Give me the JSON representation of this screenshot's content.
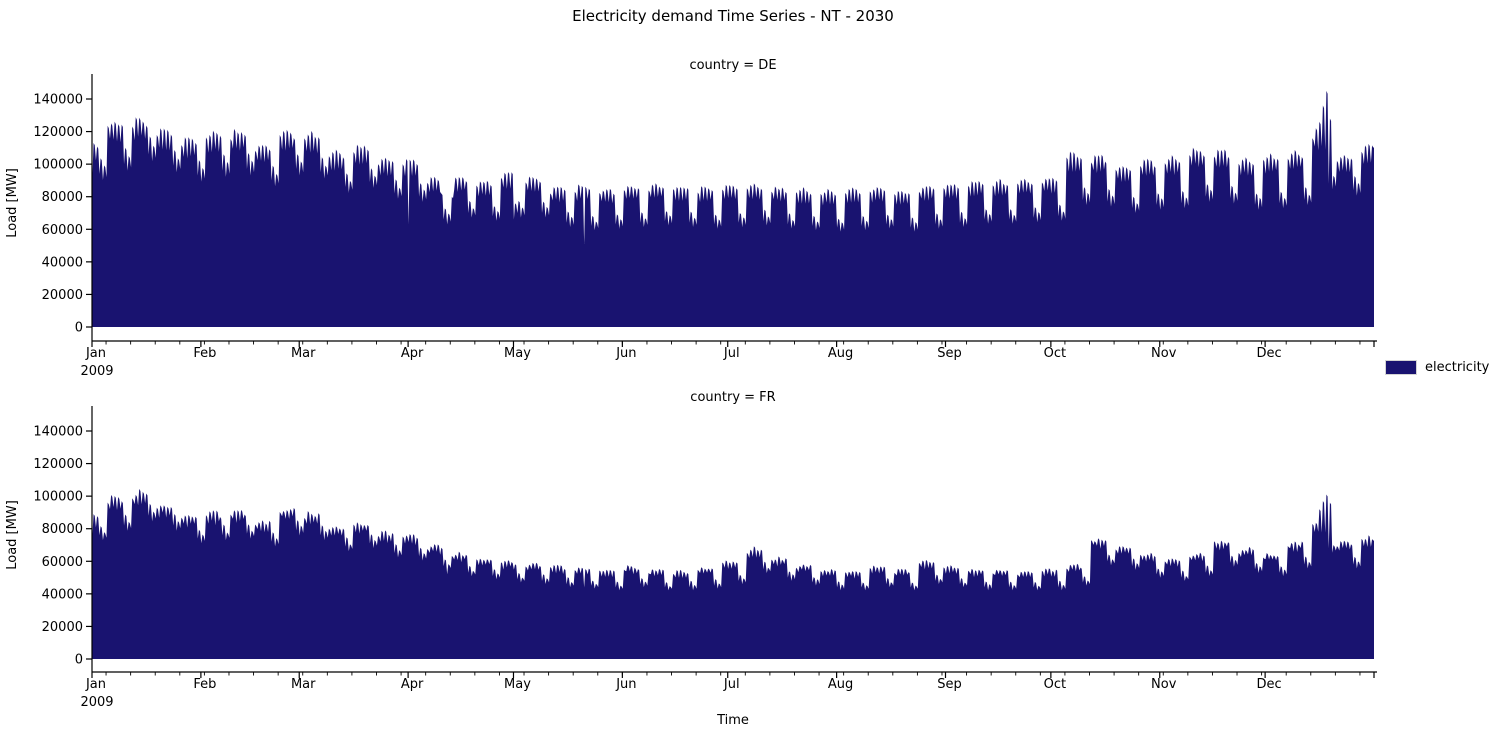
{
  "title": "Electricity demand Time Series - NT - 2030",
  "legend": {
    "label": "electricity",
    "swatch_color": "#191370"
  },
  "axes": {
    "x_label": "Time",
    "y_label": "Load [MW]",
    "year_label": "2009",
    "x_tick_labels": [
      "Jan",
      "Feb",
      "Mar",
      "Apr",
      "May",
      "Jun",
      "Jul",
      "Aug",
      "Sep",
      "Oct",
      "Nov",
      "Dec"
    ],
    "y_ticks": [
      0,
      20000,
      40000,
      60000,
      80000,
      100000,
      120000,
      140000
    ]
  },
  "chart_data": [
    {
      "type": "area",
      "title": "country = DE",
      "series_name": "electricity",
      "color": "#191370",
      "x_unit": "weeks of year 2009 (hourly load, weekday peaks / weekend minima)",
      "y_unit": "MW",
      "ylim": [
        0,
        140000
      ],
      "weekly_peak_MW": [
        113000,
        127000,
        129000,
        122000,
        116000,
        120000,
        121000,
        113000,
        121000,
        119000,
        108000,
        112000,
        104000,
        103000,
        92000,
        93000,
        90000,
        95000,
        93000,
        86000,
        87000,
        85000,
        87000,
        88000,
        87000,
        86000,
        87000,
        88000,
        86000,
        85000,
        84000,
        85000,
        86000,
        84000,
        87000,
        88000,
        90000,
        90000,
        91000,
        92000,
        107000,
        106000,
        100000,
        103000,
        105000,
        110000,
        109000,
        104000,
        106000,
        108000,
        122000,
        106000,
        112000
      ],
      "weekly_weekend_min_MW": [
        94000,
        100000,
        106000,
        99000,
        93000,
        96000,
        97000,
        90000,
        97000,
        95000,
        86000,
        89000,
        82000,
        80000,
        66000,
        70000,
        68000,
        70000,
        70000,
        64000,
        62000,
        63000,
        64000,
        65000,
        64000,
        63000,
        64000,
        65000,
        63000,
        62000,
        61000,
        62000,
        63000,
        61000,
        63000,
        64000,
        66000,
        66000,
        67000,
        68000,
        78000,
        77000,
        73000,
        75000,
        76000,
        80000,
        79000,
        75000,
        76000,
        78000,
        88000,
        84000,
        85000
      ],
      "event_day_max_MW": {
        "99": 82000,
        "102": 80000,
        "120": 76000,
        "347": 116000,
        "349": 126000,
        "350": 136000,
        "351": 145000,
        "352": 128000
      },
      "event_day_min_MW": {
        "0": 93000,
        "90": 63000,
        "100": 66000,
        "101": 63000,
        "120": 66000,
        "140": 51000,
        "151": 62000
      }
    },
    {
      "type": "area",
      "title": "country = FR",
      "series_name": "electricity",
      "color": "#191370",
      "x_unit": "weeks of year 2009 (hourly load, weekday peaks / weekend minima)",
      "y_unit": "MW",
      "ylim": [
        0,
        140000
      ],
      "weekly_peak_MW": [
        88000,
        100000,
        103000,
        95000,
        88000,
        90000,
        91000,
        85000,
        93000,
        90000,
        82000,
        84000,
        78000,
        76000,
        70000,
        65000,
        62000,
        60000,
        59000,
        57000,
        56000,
        55000,
        57000,
        55000,
        54000,
        56000,
        60000,
        68000,
        62000,
        58000,
        55000,
        54000,
        57000,
        55000,
        60000,
        57000,
        55000,
        55000,
        54000,
        55000,
        58000,
        74000,
        70000,
        65000,
        62000,
        65000,
        73000,
        68000,
        65000,
        72000,
        85000,
        72000,
        75000
      ],
      "weekly_weekend_min_MW": [
        76000,
        82000,
        88000,
        82000,
        74000,
        76000,
        77000,
        72000,
        79000,
        76000,
        69000,
        71000,
        65000,
        63000,
        57000,
        53000,
        51000,
        49000,
        48000,
        46000,
        45000,
        44000,
        46000,
        44000,
        44000,
        45000,
        48000,
        55000,
        50000,
        47000,
        44000,
        44000,
        46000,
        44000,
        48000,
        46000,
        44000,
        44000,
        44000,
        44000,
        47000,
        60000,
        57000,
        52000,
        50000,
        53000,
        59000,
        55000,
        53000,
        58000,
        68000,
        58000,
        61000
      ],
      "event_day_max_MW": {
        "349": 92000,
        "350": 97000,
        "351": 101000,
        "352": 96000
      },
      "event_day_min_MW": {
        "0": 76000,
        "101": 52000,
        "140": 44000
      }
    }
  ]
}
